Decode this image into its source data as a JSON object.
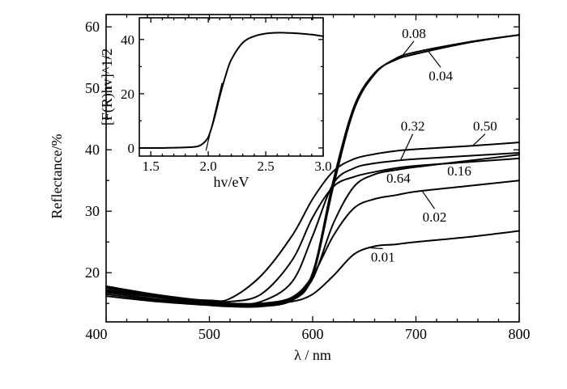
{
  "chart_data": [
    {
      "type": "line",
      "xlabel": "λ / nm",
      "ylabel": "Reflectance/%",
      "xlim": [
        400,
        800
      ],
      "ylim": [
        12,
        62
      ],
      "xticks": [
        400,
        500,
        600,
        700,
        800
      ],
      "yticks": [
        20,
        30,
        40,
        50,
        60
      ],
      "series": [
        {
          "name": "0.01",
          "label_x": 668,
          "label_y": 21.8,
          "x": [
            400,
            450,
            500,
            520,
            550,
            580,
            600,
            620,
            640,
            660,
            680,
            700,
            750,
            800
          ],
          "y": [
            17.0,
            16.0,
            15.2,
            15.0,
            14.9,
            15.3,
            16.5,
            19.5,
            23.0,
            24.3,
            24.6,
            25.0,
            25.8,
            26.8
          ]
        },
        {
          "name": "0.02",
          "label_x": 718,
          "label_y": 28.3,
          "x": [
            400,
            450,
            500,
            520,
            550,
            580,
            600,
            620,
            640,
            660,
            680,
            700,
            750,
            800
          ],
          "y": [
            17.6,
            16.3,
            15.3,
            15.0,
            15.0,
            16.0,
            19.5,
            26.0,
            30.5,
            32.0,
            32.6,
            33.2,
            34.1,
            35.0
          ]
        },
        {
          "name": "0.04",
          "label_x": 724,
          "label_y": 51.3,
          "x": [
            400,
            450,
            500,
            520,
            550,
            580,
            600,
            620,
            640,
            660,
            680,
            700,
            750,
            800
          ],
          "y": [
            16.5,
            15.5,
            14.9,
            14.7,
            14.7,
            15.8,
            20.0,
            35.0,
            47.0,
            52.5,
            54.6,
            55.6,
            57.4,
            58.7
          ]
        },
        {
          "name": "0.08",
          "label_x": 698,
          "label_y": 58.2,
          "x": [
            400,
            450,
            500,
            520,
            550,
            580,
            600,
            620,
            640,
            660,
            680,
            700,
            750,
            800
          ],
          "y": [
            16.2,
            15.3,
            14.7,
            14.5,
            14.5,
            15.5,
            19.5,
            34.0,
            46.5,
            52.3,
            54.8,
            55.9,
            57.5,
            58.7
          ]
        },
        {
          "name": "0.16",
          "label_x": 742,
          "label_y": 35.8,
          "x": [
            400,
            450,
            500,
            520,
            550,
            580,
            600,
            620,
            640,
            660,
            680,
            700,
            750,
            800
          ],
          "y": [
            17.2,
            16.0,
            15.1,
            14.9,
            14.9,
            15.8,
            19.0,
            28.0,
            34.0,
            36.0,
            36.7,
            37.2,
            38.2,
            39.2
          ]
        },
        {
          "name": "0.32",
          "label_x": 697,
          "label_y": 43.1,
          "x": [
            400,
            450,
            500,
            520,
            550,
            580,
            600,
            620,
            640,
            660,
            680,
            700,
            750,
            800
          ],
          "y": [
            16.8,
            15.7,
            15.0,
            14.8,
            15.3,
            18.5,
            26.0,
            34.5,
            37.0,
            37.8,
            38.2,
            38.5,
            39.0,
            39.5
          ]
        },
        {
          "name": "0.50",
          "label_x": 767,
          "label_y": 43.1,
          "x": [
            400,
            450,
            500,
            520,
            550,
            580,
            600,
            620,
            640,
            660,
            680,
            700,
            750,
            800
          ],
          "y": [
            17.5,
            16.2,
            15.5,
            15.8,
            19.5,
            26.0,
            32.0,
            36.5,
            38.5,
            39.3,
            39.8,
            40.1,
            40.6,
            41.2
          ]
        },
        {
          "name": "0.64",
          "label_x": 683,
          "label_y": 34.6,
          "x": [
            400,
            450,
            500,
            520,
            550,
            580,
            600,
            620,
            640,
            660,
            680,
            700,
            750,
            800
          ],
          "y": [
            17.8,
            16.4,
            15.4,
            15.3,
            16.5,
            22.0,
            29.0,
            34.0,
            35.6,
            36.4,
            37.0,
            37.4,
            38.0,
            38.6
          ]
        }
      ]
    },
    {
      "type": "line",
      "xlabel": "hv/eV",
      "ylabel": "[F(R)hv]^1/2",
      "xlim": [
        1.4,
        3.0
      ],
      "ylim": [
        -3,
        48
      ],
      "xticks": [
        1.5,
        2.0,
        2.5,
        3.0
      ],
      "yticks": [
        0,
        20,
        40
      ],
      "series": [
        {
          "x": [
            1.4,
            1.6,
            1.8,
            1.9,
            1.95,
            2.0,
            2.05,
            2.1,
            2.15,
            2.2,
            2.3,
            2.4,
            2.5,
            2.6,
            2.7,
            2.8,
            2.9,
            3.0
          ],
          "y": [
            0.0,
            0.0,
            0.2,
            0.5,
            1.5,
            4.0,
            10.5,
            19.0,
            26.5,
            32.5,
            38.8,
            41.2,
            42.2,
            42.5,
            42.4,
            42.2,
            41.8,
            41.2
          ]
        }
      ]
    }
  ]
}
